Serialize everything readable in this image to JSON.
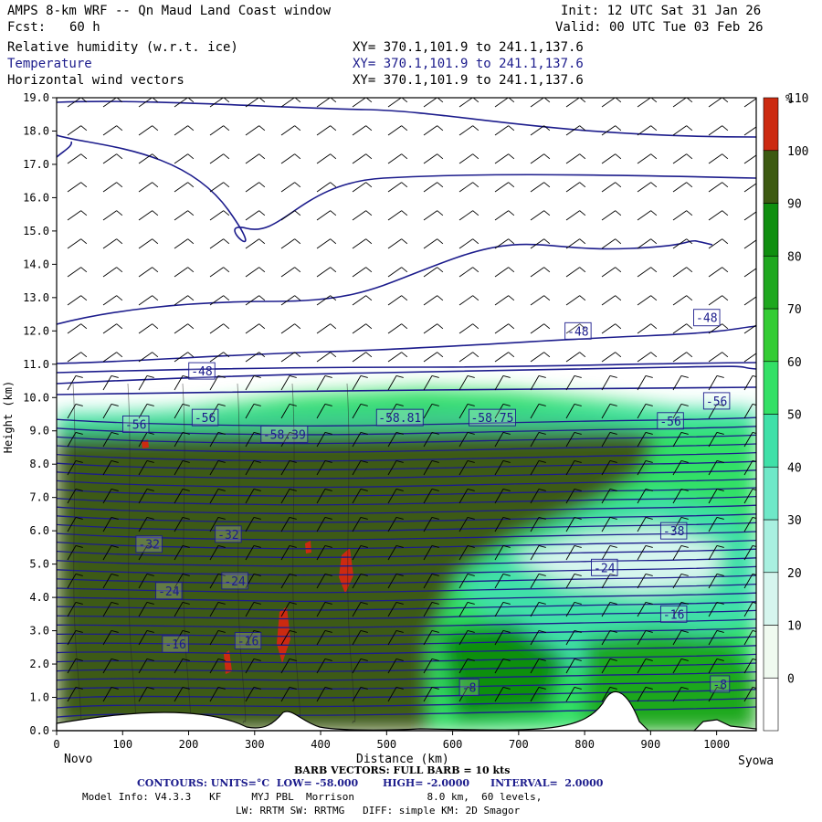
{
  "header": {
    "title": "AMPS 8-km WRF -- Qn Maud Land Coast window",
    "init": "Init: 12 UTC Sat 31 Jan 26",
    "fcst_label": "Fcst:",
    "fcst_value": "60 h",
    "valid": "Valid: 00 UTC Tue 03 Feb 26",
    "fields": [
      {
        "name": "Relative humidity (w.r.t. ice)",
        "xy": "XY= 370.1,101.9 to 241.1,137.6"
      },
      {
        "name": "Temperature",
        "xy": "XY= 370.1,101.9 to 241.1,137.6"
      },
      {
        "name": "Horizontal wind vectors",
        "xy": "XY= 370.1,101.9 to 241.1,137.6"
      }
    ]
  },
  "colors": {
    "temp_contour": "#1c1c8c",
    "terrain": "#ffffff",
    "frame": "#000000"
  },
  "colorbar": {
    "unit": "%",
    "bounds": [
      0,
      10,
      20,
      30,
      40,
      50,
      60,
      70,
      80,
      90,
      100,
      110,
      120
    ],
    "colors": [
      "#ffffff",
      "#f0faf0",
      "#d6f5ee",
      "#a9f0e0",
      "#6fe8c8",
      "#3fe0a8",
      "#33e066",
      "#33cc33",
      "#1fa81f",
      "#0f8f0f",
      "#3d5a12",
      "#cc2a10"
    ],
    "tick_labels": [
      "0",
      "10",
      "20",
      "30",
      "40",
      "50",
      "60",
      "70",
      "80",
      "90",
      "100",
      "110"
    ]
  },
  "chart_data": {
    "type": "heatmap",
    "xlabel": "Distance (km)",
    "ylabel": "Height (km)",
    "xlim": [
      0,
      1060
    ],
    "ylim": [
      0,
      19
    ],
    "x_ticks": [
      0,
      100,
      200,
      300,
      400,
      500,
      600,
      700,
      800,
      900,
      1000
    ],
    "y_ticks": [
      "0.0",
      "1.0",
      "2.0",
      "3.0",
      "4.0",
      "5.0",
      "6.0",
      "7.0",
      "8.0",
      "9.0",
      "10.0",
      "11.0",
      "12.0",
      "13.0",
      "14.0",
      "15.0",
      "16.0",
      "17.0",
      "18.0",
      "19.0"
    ],
    "left_endpoint": "Novo",
    "right_endpoint": "Syowa",
    "contour_labels": [
      {
        "text": "-48",
        "x": 220,
        "y": 10.8
      },
      {
        "text": "-48",
        "x": 790,
        "y": 12.0
      },
      {
        "text": "-48",
        "x": 985,
        "y": 12.4
      },
      {
        "text": "-56",
        "x": 120,
        "y": 9.2
      },
      {
        "text": "-56",
        "x": 225,
        "y": 9.4
      },
      {
        "text": "-56",
        "x": 930,
        "y": 9.3
      },
      {
        "text": "-56",
        "x": 1000,
        "y": 9.9
      },
      {
        "text": "-58.81",
        "x": 520,
        "y": 9.4
      },
      {
        "text": "-58.75",
        "x": 660,
        "y": 9.4
      },
      {
        "text": "-58.39",
        "x": 345,
        "y": 8.9
      },
      {
        "text": "-32",
        "x": 140,
        "y": 5.6
      },
      {
        "text": "-32",
        "x": 260,
        "y": 5.9
      },
      {
        "text": "-38",
        "x": 935,
        "y": 6.0
      },
      {
        "text": "-24",
        "x": 170,
        "y": 4.2
      },
      {
        "text": "-24",
        "x": 270,
        "y": 4.5
      },
      {
        "text": "-24",
        "x": 830,
        "y": 4.9
      },
      {
        "text": "-16",
        "x": 180,
        "y": 2.6
      },
      {
        "text": "-16",
        "x": 290,
        "y": 2.7
      },
      {
        "text": "-16",
        "x": 935,
        "y": 3.5
      },
      {
        "text": "-8",
        "x": 625,
        "y": 1.3
      },
      {
        "text": "-8",
        "x": 1005,
        "y": 1.4
      }
    ]
  },
  "footer": {
    "barb_line": "BARB VECTORS: FULL BARB = 10 kts",
    "contours_line": "CONTOURS: UNITS=°C  LOW= -58.000       HIGH= -2.0000      INTERVAL=  2.0000",
    "model_line1": "Model Info: V4.3.3   KF     MYJ PBL  Morrison            8.0 km,  60 levels,",
    "model_line2": "LW: RRTM SW: RRTMG   DIFF: simple KM: 2D Smagor"
  }
}
